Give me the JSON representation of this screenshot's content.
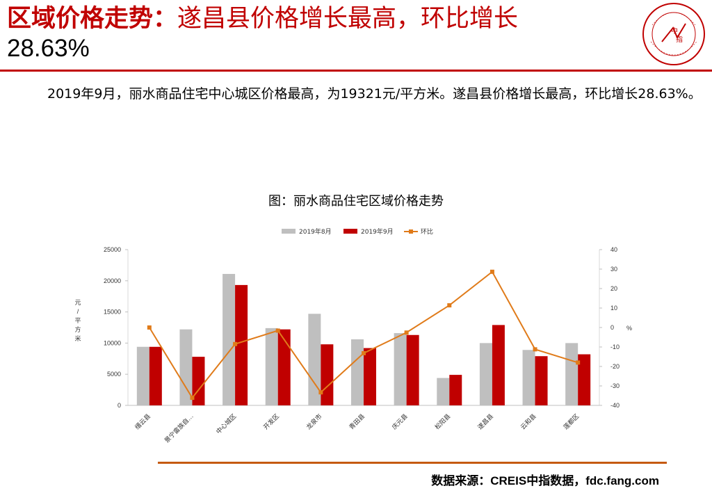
{
  "title": {
    "bold_part": "区域价格走势：",
    "rest_part": "遂昌县价格增长最高，环比增长",
    "line2": "28.63%"
  },
  "logo": {
    "icon": "china-index-academy-seal-icon",
    "center_text": [
      "中",
      "指"
    ]
  },
  "summary": "2019年9月，丽水商品住宅中心城区价格最高，为19321元/平方米。遂昌县价格增长最高，环比增长28.63%。",
  "chart_title": "图：丽水商品住宅区域价格走势",
  "source": "数据来源：CREIS中指数据，fdc.fang.com",
  "colors": {
    "accent": "#c00000",
    "series_aug": "#bfbfbf",
    "series_sep": "#c00000",
    "series_mom": "#e07b1a",
    "rule_bottom": "#c55a11"
  },
  "chart_data": {
    "type": "bar",
    "title": "图：丽水商品住宅区域价格走势",
    "categories": [
      "缙云县",
      "景宁畲族自…",
      "中心城区",
      "开发区",
      "龙泉市",
      "青田县",
      "庆元县",
      "松阳县",
      "遂昌县",
      "云和县",
      "莲都区"
    ],
    "series": [
      {
        "name": "2019年8月",
        "type": "bar",
        "axis": "left",
        "values": [
          9400,
          12200,
          21100,
          12400,
          14700,
          10600,
          11600,
          4400,
          10000,
          8900,
          10000
        ]
      },
      {
        "name": "2019年9月",
        "type": "bar",
        "axis": "left",
        "values": [
          9400,
          7800,
          19321,
          12200,
          9800,
          9200,
          11300,
          4900,
          12900,
          7900,
          8200
        ]
      },
      {
        "name": "环比",
        "type": "line",
        "axis": "right",
        "values": [
          0,
          -36.1,
          -8.5,
          -1.6,
          -33.3,
          -13.2,
          -2.6,
          11.4,
          28.63,
          -11.2,
          -18.0
        ]
      }
    ],
    "ylabel": "元/平方米",
    "ylim": [
      0,
      25000
    ],
    "yticks": [
      "0",
      "5000",
      "10000",
      "15000",
      "20000",
      "25000"
    ],
    "y2label": "%",
    "y2lim": [
      -40,
      40
    ],
    "y2ticks": [
      "-40",
      "-30",
      "-20",
      "-10",
      "0",
      "10",
      "20",
      "30",
      "40"
    ],
    "legend": "top",
    "grid": false
  }
}
